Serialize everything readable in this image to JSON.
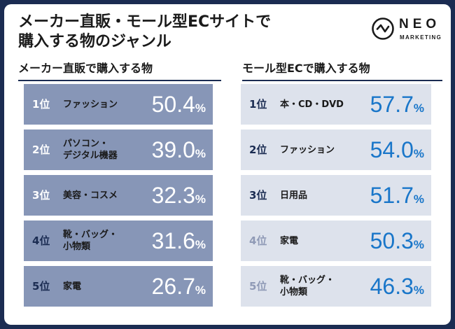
{
  "title": {
    "line1": "メーカー直販・モール型ECサイトで",
    "line2": "購入する物のジャンル"
  },
  "logo": {
    "name": "NEO",
    "sub": "MARKETING"
  },
  "colors": {
    "frame": "#1b2c52",
    "left_row": "#8796b7",
    "right_row": "#dde2ec",
    "right_value": "#1976c9"
  },
  "maker": {
    "heading": "メーカー直販で購入する物",
    "items": [
      {
        "rank": "1位",
        "genre": "ファッション",
        "value": "50.4",
        "unit": "%"
      },
      {
        "rank": "2位",
        "genre": "パソコン・\nデジタル機器",
        "value": "39.0",
        "unit": "%"
      },
      {
        "rank": "3位",
        "genre": "美容・コスメ",
        "value": "32.3",
        "unit": "%"
      },
      {
        "rank": "4位",
        "genre": "靴・バッグ・\n小物類",
        "value": "31.6",
        "unit": "%"
      },
      {
        "rank": "5位",
        "genre": "家電",
        "value": "26.7",
        "unit": "%"
      }
    ]
  },
  "mall": {
    "heading": "モール型ECで購入する物",
    "items": [
      {
        "rank": "1位",
        "genre": "本・CD・DVD",
        "value": "57.7",
        "unit": "%"
      },
      {
        "rank": "2位",
        "genre": "ファッション",
        "value": "54.0",
        "unit": "%"
      },
      {
        "rank": "3位",
        "genre": "日用品",
        "value": "51.7",
        "unit": "%"
      },
      {
        "rank": "4位",
        "genre": "家電",
        "value": "50.3",
        "unit": "%"
      },
      {
        "rank": "5位",
        "genre": "靴・バッグ・\n小物類",
        "value": "46.3",
        "unit": "%"
      }
    ]
  }
}
